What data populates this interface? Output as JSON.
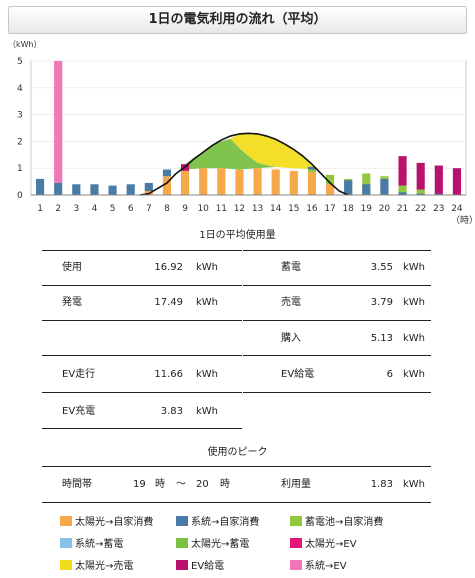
{
  "title": "1日の電気利用の流れ（平均）",
  "colors": {
    "solar_self": "#F7A84A",
    "grid_self": "#4A7BA6",
    "battery_self": "#92C83E",
    "grid_charge": "#87C1E8",
    "solar_charge": "#7AC143",
    "solar_ev": "#E3177A",
    "solar_sell": "#F2DC1E",
    "ev_supply": "#B8126F",
    "grid_ev": "#F277B8"
  },
  "chart_data": {
    "type": "bar",
    "ylabel": "（kWh）",
    "xlabel": "（時）",
    "ylim": [
      0,
      5
    ],
    "yticks": [
      "0",
      "1",
      "2",
      "3",
      "4",
      "5"
    ],
    "categories": [
      "1",
      "2",
      "3",
      "4",
      "5",
      "6",
      "7",
      "8",
      "9",
      "10",
      "11",
      "12",
      "13",
      "14",
      "15",
      "16",
      "17",
      "18",
      "19",
      "20",
      "21",
      "22",
      "23",
      "24"
    ],
    "series": [
      {
        "name": "太陽光→自家消費",
        "key": "solar_self",
        "values": [
          0,
          0,
          0,
          0,
          0,
          0,
          0.15,
          0.7,
          0.9,
          1.0,
          1.0,
          0.95,
          1.0,
          0.95,
          0.9,
          0.85,
          0.4,
          0,
          0,
          0,
          0,
          0,
          0,
          0
        ]
      },
      {
        "name": "系統→自家消費",
        "key": "grid_self",
        "values": [
          0.6,
          0.45,
          0.4,
          0.4,
          0.35,
          0.4,
          0.3,
          0.25,
          0,
          0,
          0,
          0,
          0,
          0,
          0,
          0,
          0,
          0,
          0,
          0,
          0,
          0,
          0,
          0
        ]
      },
      {
        "name": "蓄電池→自家消費",
        "key": "battery_self",
        "values": [
          0,
          0,
          0,
          0,
          0,
          0,
          0,
          0,
          0,
          0,
          0,
          0,
          0,
          0,
          0,
          0.1,
          0.35,
          0.6,
          0.8,
          0.7,
          0.35,
          0.2,
          0,
          0
        ]
      },
      {
        "name": "系統→蓄電",
        "key": "grid_charge",
        "values": [
          0,
          0,
          0,
          0,
          0,
          0,
          0,
          0,
          0,
          0,
          0,
          0,
          0,
          0,
          0,
          0,
          0,
          0,
          0,
          0,
          0,
          0,
          0,
          0
        ]
      },
      {
        "name": "太陽光→蓄電",
        "key": "solar_charge",
        "values": [
          0,
          0,
          0,
          0,
          0,
          0,
          0,
          0,
          0,
          0,
          0,
          0,
          0,
          0,
          0,
          0,
          0,
          0,
          0,
          0,
          0,
          0,
          0,
          0
        ]
      },
      {
        "name": "太陽光→EV",
        "key": "solar_ev",
        "values": [
          0,
          0,
          0,
          0,
          0,
          0,
          0,
          0,
          0,
          0,
          0,
          0,
          0,
          0,
          0,
          0,
          0,
          0,
          0,
          0,
          0,
          0,
          0,
          0
        ]
      },
      {
        "name": "太陽光→売電",
        "key": "solar_sell",
        "values": [
          0,
          0,
          0,
          0,
          0,
          0,
          0,
          0,
          0,
          0,
          0,
          0,
          0,
          0,
          0,
          0,
          0,
          0,
          0,
          0,
          0,
          0,
          0,
          0
        ]
      },
      {
        "name": "EV給電",
        "key": "ev_supply",
        "values": [
          0,
          0,
          0,
          0,
          0,
          0,
          0,
          0,
          0.25,
          0,
          0,
          0,
          0,
          0,
          0,
          0,
          0,
          0,
          0,
          0,
          1.1,
          1.0,
          1.1,
          1.0
        ]
      },
      {
        "name": "系統→EV",
        "key": "grid_ev",
        "values": [
          0,
          4.55,
          0,
          0,
          0,
          0,
          0,
          0,
          0,
          0,
          0,
          0,
          0,
          0,
          0,
          0,
          0,
          0,
          0,
          0,
          0,
          0,
          0,
          0
        ]
      }
    ],
    "extra_bar_segments": [
      {
        "x": 16,
        "key": "grid_self",
        "from": 0.95,
        "to": 1.05
      },
      {
        "x": 18,
        "key": "grid_self",
        "from": 0,
        "to": 0.55
      },
      {
        "x": 19,
        "key": "grid_self",
        "from": 0,
        "to": 0.4
      },
      {
        "x": 20,
        "key": "grid_self",
        "from": 0,
        "to": 0.6
      },
      {
        "x": 21,
        "key": "grid_self",
        "from": 0,
        "to": 0.1
      },
      {
        "x": 22,
        "key": "grid_self",
        "from": 0,
        "to": 0.05
      },
      {
        "x": 23,
        "key": "grid_self",
        "from": 0,
        "to": 0.05
      }
    ],
    "generation_curve": [
      [
        6.5,
        0
      ],
      [
        7,
        0.05
      ],
      [
        7.5,
        0.25
      ],
      [
        8,
        0.45
      ],
      [
        8.5,
        0.8
      ],
      [
        9,
        1.05
      ],
      [
        9.5,
        1.35
      ],
      [
        10,
        1.6
      ],
      [
        10.5,
        1.85
      ],
      [
        11,
        2.05
      ],
      [
        11.5,
        2.2
      ],
      [
        12,
        2.28
      ],
      [
        12.5,
        2.3
      ],
      [
        13,
        2.28
      ],
      [
        13.5,
        2.2
      ],
      [
        14,
        2.08
      ],
      [
        14.5,
        1.9
      ],
      [
        15,
        1.7
      ],
      [
        15.5,
        1.45
      ],
      [
        16,
        1.15
      ],
      [
        16.5,
        0.8
      ],
      [
        17,
        0.45
      ],
      [
        17.5,
        0.15
      ],
      [
        18,
        0
      ]
    ],
    "areas": [
      {
        "key": "solar_charge",
        "from_curve": "solar_self_top",
        "points": [
          [
            8.7,
            1.0
          ],
          [
            9.5,
            1.4
          ],
          [
            10,
            1.6
          ],
          [
            10.5,
            1.85
          ],
          [
            11,
            2.0
          ],
          [
            11.5,
            2.1
          ],
          [
            12,
            1.75
          ],
          [
            12.5,
            1.45
          ],
          [
            13,
            1.2
          ],
          [
            13.5,
            1.12
          ],
          [
            14,
            1.05
          ]
        ]
      },
      {
        "key": "solar_sell",
        "points": [
          [
            11.5,
            2.1
          ],
          [
            12,
            2.28
          ],
          [
            12.5,
            2.3
          ],
          [
            13,
            2.28
          ],
          [
            13.5,
            2.2
          ],
          [
            14,
            2.08
          ],
          [
            14.5,
            1.9
          ],
          [
            15,
            1.7
          ],
          [
            15.5,
            1.45
          ],
          [
            16,
            1.15
          ],
          [
            16.4,
            0.95
          ],
          [
            15.5,
            0.98
          ],
          [
            15,
            1.0
          ],
          [
            14.5,
            1.02
          ],
          [
            14,
            1.05
          ],
          [
            13.5,
            1.12
          ],
          [
            13,
            1.2
          ],
          [
            12.5,
            1.45
          ],
          [
            12,
            1.75
          ]
        ]
      }
    ]
  },
  "summary": {
    "caption": "1日の平均使用量",
    "usage_label": "使用",
    "usage_value": "16.92",
    "usage_unit": "kWh",
    "gen_label": "発電",
    "gen_value": "17.49",
    "gen_unit": "kWh",
    "storage_label": "蓄電",
    "storage_value": "3.55",
    "storage_unit": "kWh",
    "sell_label": "売電",
    "sell_value": "3.79",
    "sell_unit": "kWh",
    "buy_label": "購入",
    "buy_value": "5.13",
    "buy_unit": "kWh",
    "ev_drive_label": "EV走行",
    "ev_drive_value": "11.66",
    "ev_drive_unit": "kWh",
    "ev_supply_label": "EV給電",
    "ev_supply_value": "6",
    "ev_supply_unit": "kWh",
    "ev_charge_label": "EV充電",
    "ev_charge_value": "3.83",
    "ev_charge_unit": "kWh"
  },
  "peak": {
    "caption": "使用のピーク",
    "time_label": "時間帯",
    "start": "19",
    "start_unit": "時",
    "tilde": "～",
    "end": "20",
    "end_unit": "時",
    "amount_label": "利用量",
    "amount_value": "1.83",
    "amount_unit": "kWh"
  },
  "legend": [
    {
      "key": "solar_self",
      "label": "太陽光→自家消費"
    },
    {
      "key": "grid_self",
      "label": "系統→自家消費"
    },
    {
      "key": "battery_self",
      "label": "蓄電池→自家消費"
    },
    {
      "key": "grid_charge",
      "label": "系統→蓄電"
    },
    {
      "key": "solar_charge",
      "label": "太陽光→蓄電"
    },
    {
      "key": "solar_ev",
      "label": "太陽光→EV"
    },
    {
      "key": "solar_sell",
      "label": "太陽光→売電"
    },
    {
      "key": "ev_supply",
      "label": "EV給電"
    },
    {
      "key": "grid_ev",
      "label": "系統→EV"
    }
  ]
}
